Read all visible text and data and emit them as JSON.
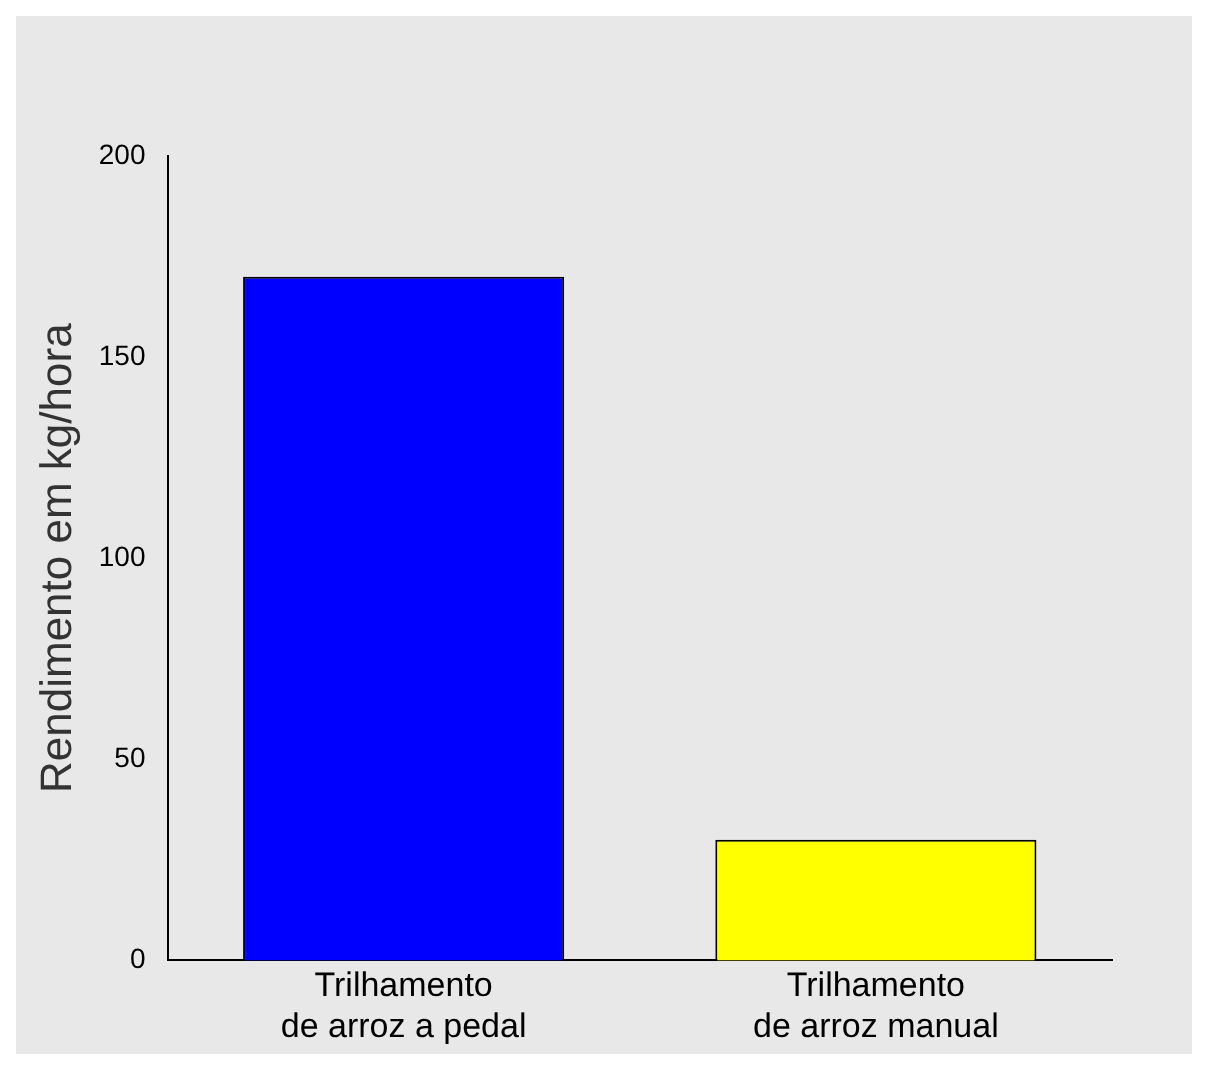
{
  "chart_data": {
    "type": "bar",
    "ylabel": "Rendimento em kg/hora",
    "categories": [
      "Trilhamento de arroz a pedal",
      "Trilhamento de arroz manual"
    ],
    "values": [
      170,
      30
    ],
    "colors": [
      "#0000ff",
      "#ffff00"
    ],
    "ylim": [
      0,
      200
    ],
    "yticks": [
      0,
      50,
      100,
      150,
      200
    ],
    "grid": false,
    "legend": false
  }
}
